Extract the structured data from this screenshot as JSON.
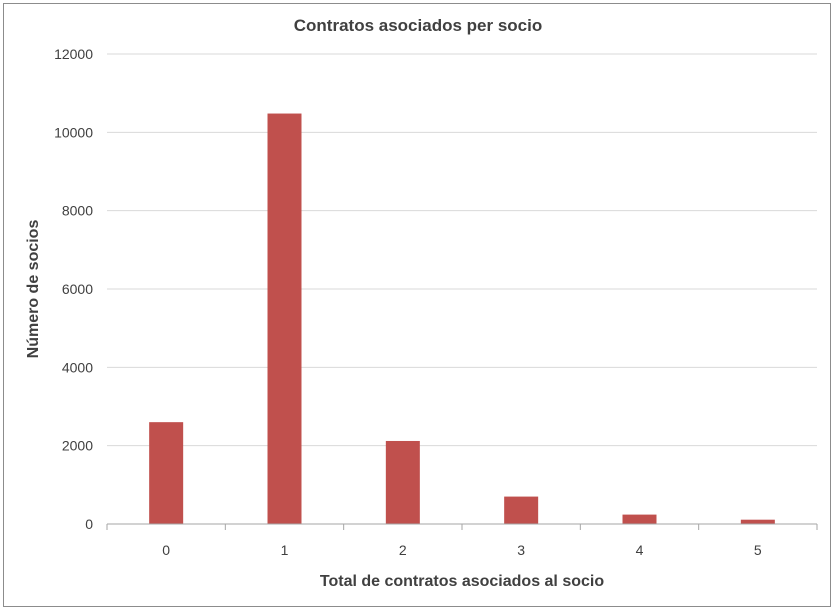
{
  "chart_data": {
    "type": "bar",
    "title": "Contratos asociados per socio",
    "xlabel": "Total de contratos asociados al socio",
    "ylabel": "Número de socios",
    "categories": [
      "0",
      "1",
      "2",
      "3",
      "4",
      "5"
    ],
    "values": [
      2600,
      10480,
      2120,
      700,
      240,
      110
    ],
    "ylim": [
      0,
      12000
    ],
    "yticks": [
      "0",
      "2000",
      "4000",
      "6000",
      "8000",
      "10000",
      "12000"
    ],
    "grid": true,
    "legend": "none",
    "bar_color": "#c0504d",
    "grid_color": "#d9d9d9",
    "axis_color": "#a6a6a6"
  }
}
